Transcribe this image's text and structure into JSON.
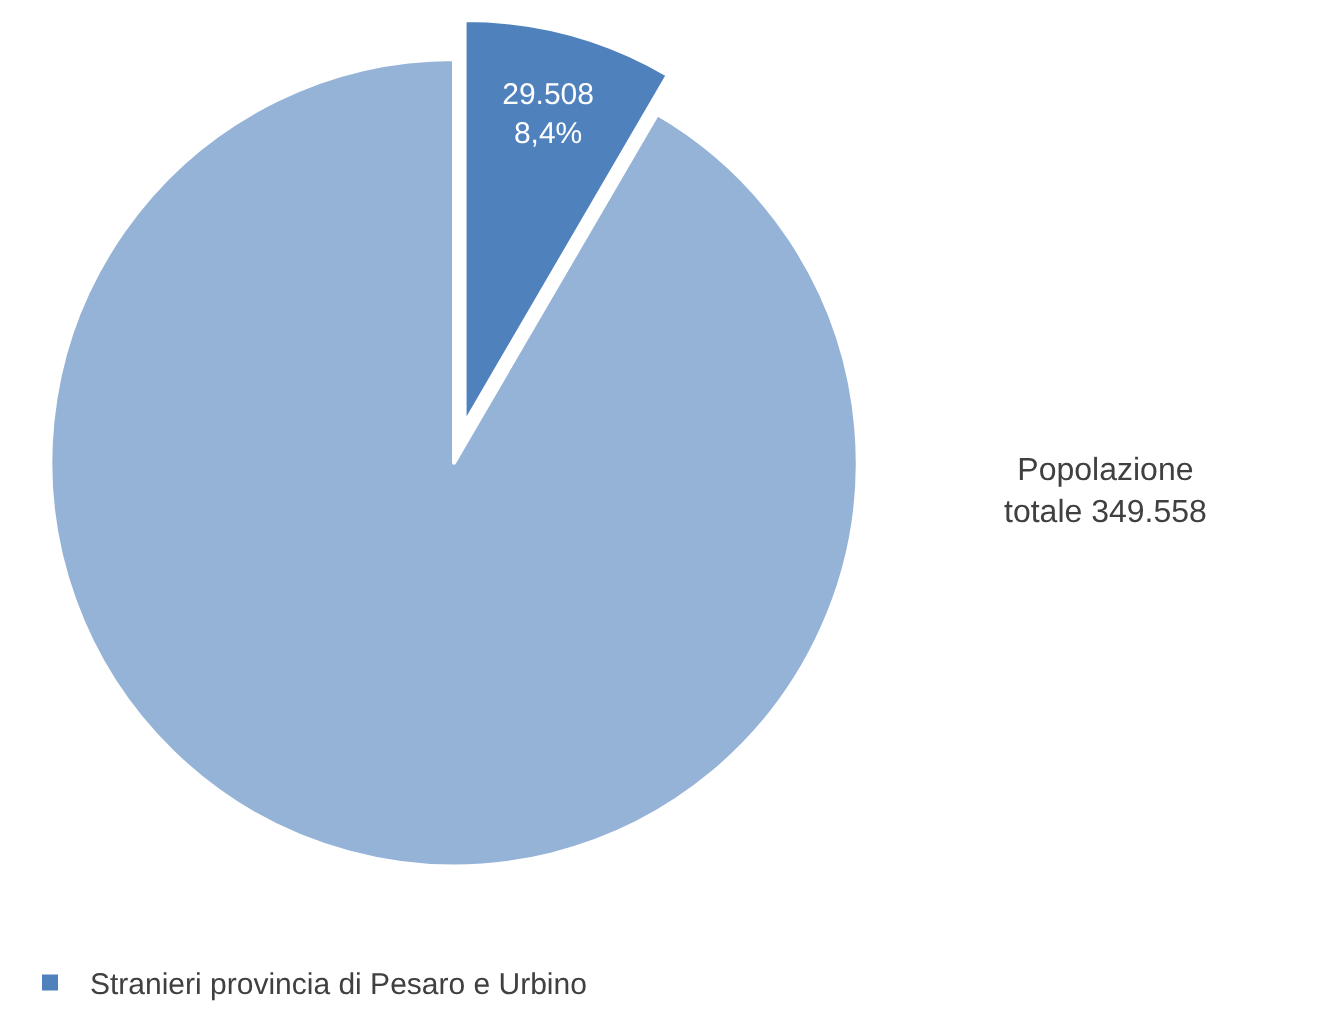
{
  "chart_data": {
    "type": "pie",
    "categories": [
      "Stranieri provincia di Pesaro e Urbino",
      null
    ],
    "values": [
      8.4,
      91.6
    ],
    "colors": [
      "#4f81bd",
      "#95b3d7"
    ],
    "value_labels": [
      "29.508\n8,4%",
      null
    ],
    "annotations": [
      "Popolazione\ntotale 349.558"
    ],
    "legend": "bottom left"
  }
}
